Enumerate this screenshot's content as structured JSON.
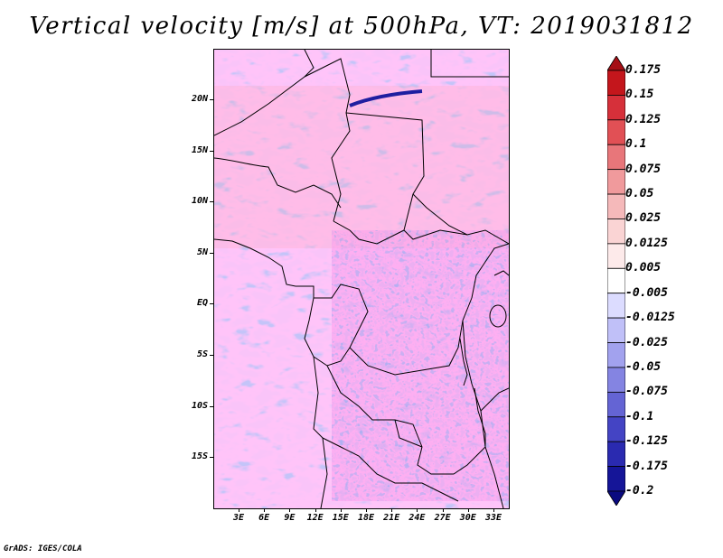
{
  "title": "Vertical velocity [m/s] at 500hPa, VT: 2019031812",
  "map": {
    "lat_labels": [
      "20N",
      "15N",
      "10N",
      "5N",
      "EQ",
      "5S",
      "10S",
      "15S"
    ],
    "lon_labels": [
      "3E",
      "6E",
      "9E",
      "12E",
      "15E",
      "18E",
      "21E",
      "24E",
      "27E",
      "30E",
      "33E"
    ]
  },
  "colorbar": {
    "labels": [
      "0.175",
      "0.15",
      "0.125",
      "0.1",
      "0.075",
      "0.05",
      "0.025",
      "0.0125",
      "0.005",
      "-0.005",
      "-0.0125",
      "-0.025",
      "-0.05",
      "-0.075",
      "-0.1",
      "-0.125",
      "-0.175",
      "-0.2"
    ],
    "colors": [
      "#a50f15",
      "#c4161c",
      "#d6303a",
      "#e15055",
      "#e8767a",
      "#f09a9c",
      "#f5b9ba",
      "#fad4d4",
      "#fdeaea",
      "#ffffff",
      "#dcdcff",
      "#c0c0f8",
      "#a2a2ee",
      "#8484e2",
      "#6464d4",
      "#4444c4",
      "#2a2ab0",
      "#151598",
      "#0a0a80"
    ]
  },
  "footer": "GrADS: IGES/COLA"
}
